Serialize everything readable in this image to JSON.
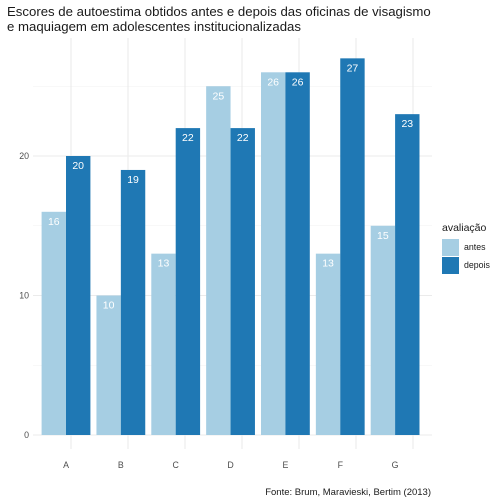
{
  "title_lines": [
    "Escores de autoestima obtidos antes e depois das oficinas de visagismo",
    "e maquiagem em adolescentes institucionalizadas"
  ],
  "caption": "Fonte: Brum, Maravieski, Bertim (2013)",
  "legend": {
    "title": "avaliação",
    "items": [
      {
        "label": "antes",
        "color": "#a6cee3"
      },
      {
        "label": "depois",
        "color": "#1f78b4"
      }
    ]
  },
  "chart_data": {
    "type": "bar",
    "categories": [
      "A",
      "B",
      "C",
      "D",
      "E",
      "F",
      "G"
    ],
    "series": [
      {
        "name": "antes",
        "color": "#a6cee3",
        "values": [
          16,
          10,
          13,
          25,
          26,
          13,
          15
        ]
      },
      {
        "name": "depois",
        "color": "#1f78b4",
        "values": [
          20,
          19,
          22,
          22,
          26,
          27,
          23
        ]
      }
    ],
    "y_ticks": [
      0,
      10,
      20
    ],
    "ylim": [
      0,
      28.35
    ],
    "grid": true,
    "legend_position": "right",
    "data_labels": true
  }
}
